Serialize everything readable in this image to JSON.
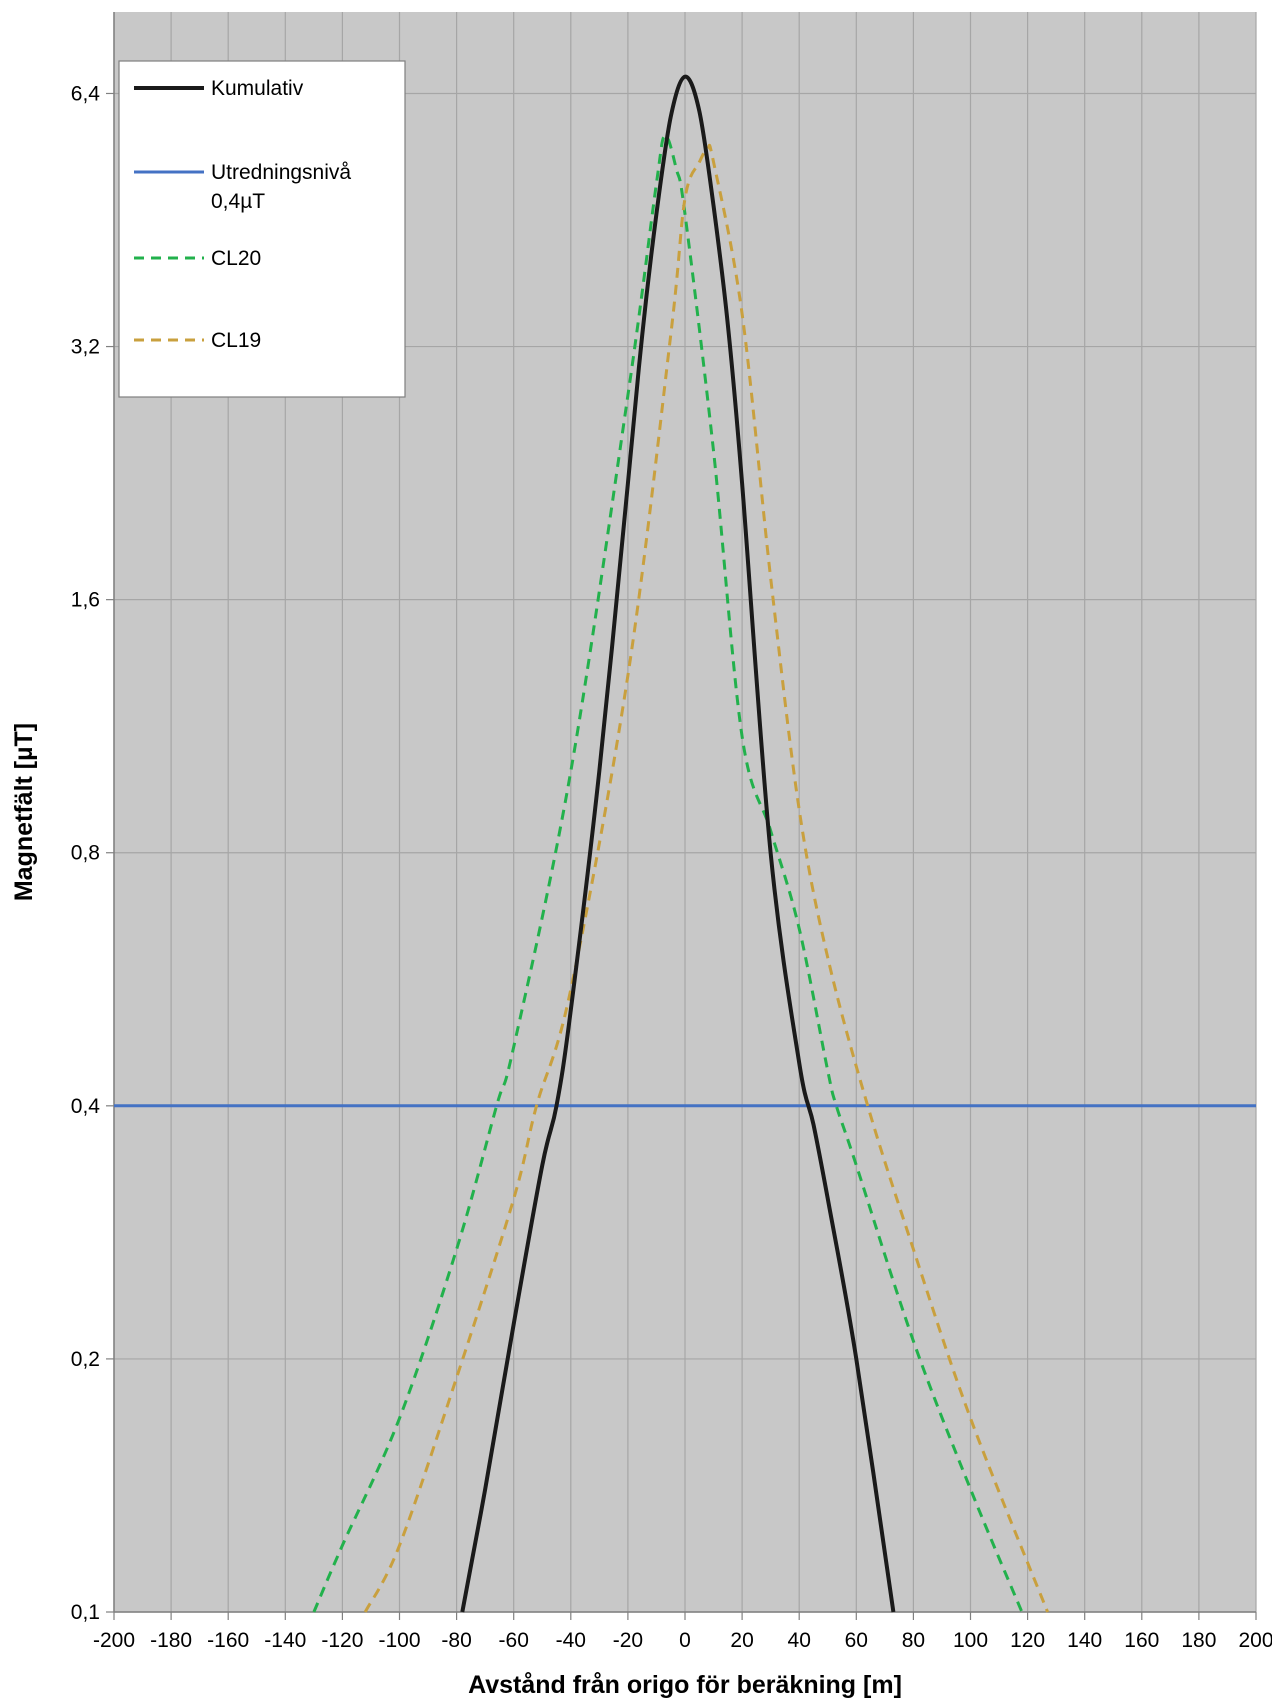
{
  "chart_data": {
    "type": "line",
    "title": "",
    "xlabel": "Avstånd från origo för beräkning [m]",
    "ylabel": "Magnetfält [µT]",
    "xlim": [
      -200,
      200
    ],
    "ylim": [
      0.1,
      8
    ],
    "yscale": "log2",
    "x_ticks": [
      -200,
      -180,
      -160,
      -140,
      -120,
      -100,
      -80,
      -60,
      -40,
      -20,
      0,
      20,
      40,
      60,
      80,
      100,
      120,
      140,
      160,
      180,
      200
    ],
    "y_ticks": [
      {
        "value": 0.1,
        "label": "0,1"
      },
      {
        "value": 0.2,
        "label": "0,2"
      },
      {
        "value": 0.4,
        "label": "0,4"
      },
      {
        "value": 0.8,
        "label": "0,8"
      },
      {
        "value": 1.6,
        "label": "1,6"
      },
      {
        "value": 3.2,
        "label": "3,2"
      },
      {
        "value": 6.4,
        "label": "6,4"
      }
    ],
    "grid": true,
    "background_color": "#c8c8c8",
    "legend_position": "top-left",
    "legend": [
      {
        "series": "kumulativ",
        "label_lines": [
          "Kumulativ"
        ]
      },
      {
        "series": "utredningsniva",
        "label_lines": [
          "Utredningsnivå",
          "0,4µT"
        ]
      },
      {
        "series": "cl20",
        "label_lines": [
          "CL20"
        ]
      },
      {
        "series": "cl19",
        "label_lines": [
          "CL19"
        ]
      }
    ],
    "series": [
      {
        "id": "kumulativ",
        "name": "Kumulativ",
        "color": "#1a1a1a",
        "dash": "solid",
        "x": [
          -78,
          -70,
          -60,
          -50,
          -45,
          -40,
          -30,
          -20,
          -15,
          -10,
          -5,
          0,
          5,
          10,
          15,
          20,
          30,
          40,
          45,
          50,
          60,
          73
        ],
        "y": [
          0.1,
          0.14,
          0.22,
          0.34,
          0.4,
          0.52,
          1.0,
          2.2,
          3.3,
          4.6,
          6.0,
          6.7,
          6.1,
          4.7,
          3.4,
          2.2,
          0.8,
          0.45,
          0.38,
          0.31,
          0.2,
          0.1
        ]
      },
      {
        "id": "utredningsniva",
        "name": "Utredningsnivå 0,4µT",
        "color": "#4472c4",
        "dash": "solid",
        "x": [
          -200,
          200
        ],
        "y": [
          0.4,
          0.4
        ]
      },
      {
        "id": "cl20",
        "name": "CL20",
        "color": "#22b14c",
        "dash": "dashed",
        "x": [
          -130,
          -120,
          -100,
          -80,
          -66,
          -60,
          -40,
          -20,
          -10,
          -7,
          -3,
          0,
          10,
          20,
          30,
          40,
          50,
          53,
          60,
          80,
          100,
          118
        ],
        "y": [
          0.1,
          0.12,
          0.17,
          0.27,
          0.4,
          0.47,
          1.0,
          2.8,
          5.0,
          5.7,
          5.2,
          4.6,
          2.4,
          1.1,
          0.85,
          0.65,
          0.44,
          0.4,
          0.34,
          0.21,
          0.14,
          0.1
        ]
      },
      {
        "id": "cl19",
        "name": "CL19",
        "color": "#c9a03e",
        "dash": "dashed",
        "x": [
          -112,
          -100,
          -80,
          -60,
          -52,
          -40,
          -20,
          -5,
          0,
          5,
          8,
          10,
          20,
          30,
          40,
          50,
          64,
          80,
          100,
          127
        ],
        "y": [
          0.1,
          0.12,
          0.19,
          0.31,
          0.4,
          0.55,
          1.3,
          3.3,
          4.8,
          5.3,
          5.5,
          5.3,
          3.5,
          1.7,
          0.9,
          0.6,
          0.4,
          0.27,
          0.17,
          0.1
        ]
      }
    ]
  }
}
